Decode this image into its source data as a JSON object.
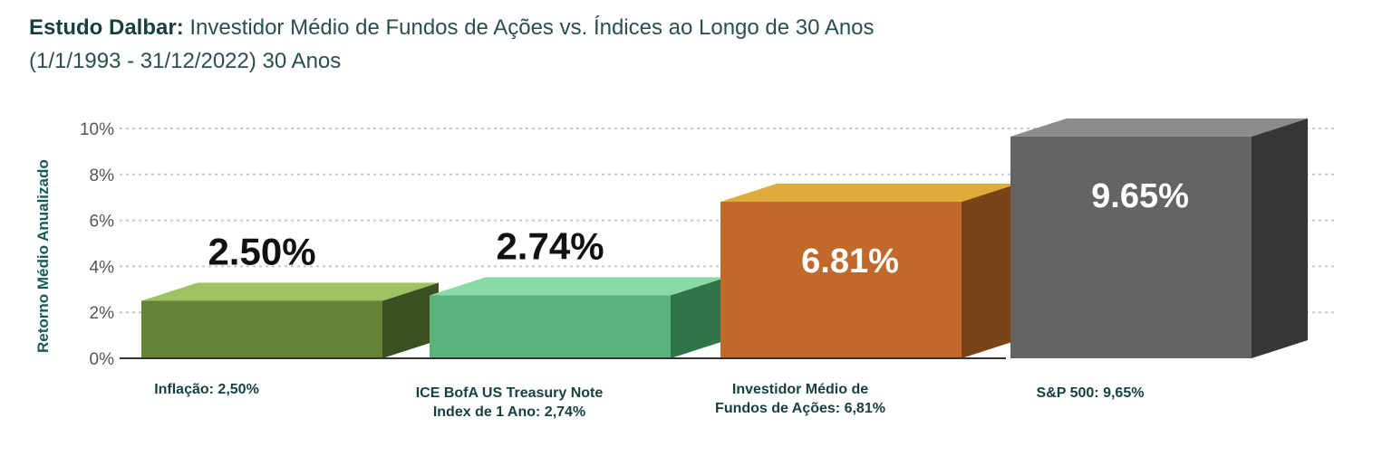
{
  "title_bold": "Estudo Dalbar:",
  "title_rest": " Investidor Médio de Fundos de Ações vs. Índices ao Longo de 30 Anos",
  "subtitle": "(1/1/1993 - 31/12/2022) 30 Anos",
  "chart_data": {
    "type": "bar",
    "title": "Estudo Dalbar: Investidor Médio de Fundos de Ações vs. Índices ao Longo de 30 Anos",
    "ylabel": "Retorno Médio Anualizado",
    "xlabel": "",
    "ylim": [
      0,
      10
    ],
    "yticks": [
      "0%",
      "2%",
      "4%",
      "6%",
      "8%",
      "10%"
    ],
    "grid": true,
    "categories": [
      "Inflação: 2,50%",
      "ICE BofA US Treasury Note\nIndex de 1 Ano: 2,74%",
      "Investidor Médio de\nFundos de Ações: 6,81%",
      "S&P 500: 9,65%"
    ],
    "values": [
      2.5,
      2.74,
      6.81,
      9.65
    ],
    "data_labels": [
      "2.50%",
      "2.74%",
      "6.81%",
      "9.65%"
    ],
    "colors": [
      {
        "front": "#648337",
        "top": "#9cc262",
        "side": "#3a4f22",
        "label": "#111111"
      },
      {
        "front": "#5bb27a",
        "top": "#88dba4",
        "side": "#2f7548",
        "label": "#111111"
      },
      {
        "front": "#c0692a",
        "top": "#e1ab3a",
        "side": "#7a4419",
        "label": "#ffffff"
      },
      {
        "front": "#646464",
        "top": "#8c8c8c",
        "side": "#363636",
        "label": "#ffffff"
      }
    ]
  }
}
